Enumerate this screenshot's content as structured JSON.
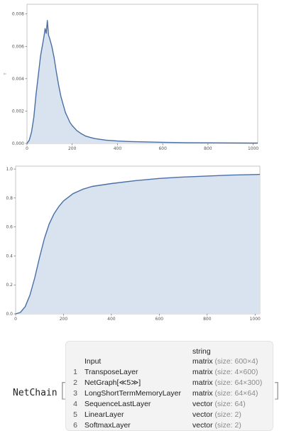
{
  "colors": {
    "curve": "#4a6fa5",
    "fill": "#d9e2ef",
    "axis": "#555555"
  },
  "charts": [
    {
      "type": "area",
      "ylabel": "Y",
      "x_ticks": [
        "0",
        "200",
        "400",
        "600",
        "800",
        "1000"
      ],
      "y_ticks": [
        "0.000",
        "0.002",
        "0.004",
        "0.006",
        "0.008"
      ],
      "xlim": [
        0,
        1020
      ],
      "ylim": [
        0,
        0.0086
      ]
    },
    {
      "type": "area",
      "x_ticks": [
        "0",
        "200",
        "400",
        "600",
        "800",
        "1000"
      ],
      "y_ticks": [
        "0.0",
        "0.2",
        "0.4",
        "0.6",
        "0.8",
        "1.0"
      ],
      "xlim": [
        0,
        1020
      ],
      "ylim": [
        0,
        1.02
      ]
    }
  ],
  "chart_data": [
    {
      "type": "area",
      "x": [
        0,
        10,
        20,
        30,
        40,
        50,
        60,
        70,
        75,
        80,
        85,
        90,
        95,
        100,
        110,
        120,
        130,
        140,
        150,
        160,
        170,
        180,
        190,
        200,
        220,
        240,
        260,
        280,
        300,
        350,
        400,
        450,
        500,
        600,
        700,
        800,
        900,
        1000,
        1020
      ],
      "y": [
        0.0,
        0.0002,
        0.0007,
        0.0016,
        0.003,
        0.0042,
        0.0054,
        0.0062,
        0.0066,
        0.0071,
        0.0068,
        0.0076,
        0.0067,
        0.0065,
        0.006,
        0.0053,
        0.0044,
        0.0036,
        0.0029,
        0.0024,
        0.0019,
        0.0016,
        0.0013,
        0.0011,
        0.0008,
        0.0006,
        0.00045,
        0.00037,
        0.0003,
        0.0002,
        0.00015,
        0.00012,
        0.0001,
        7e-05,
        5e-05,
        4e-05,
        3e-05,
        2e-05,
        2e-05
      ],
      "ylim": [
        0,
        0.0086
      ],
      "xlim": [
        0,
        1020
      ]
    },
    {
      "type": "area",
      "x": [
        0,
        20,
        40,
        60,
        80,
        100,
        120,
        140,
        160,
        180,
        200,
        240,
        280,
        320,
        400,
        500,
        600,
        700,
        800,
        900,
        1000,
        1020
      ],
      "y": [
        0.0,
        0.01,
        0.05,
        0.13,
        0.25,
        0.39,
        0.52,
        0.62,
        0.69,
        0.74,
        0.78,
        0.83,
        0.86,
        0.88,
        0.9,
        0.92,
        0.935,
        0.945,
        0.952,
        0.958,
        0.962,
        0.963
      ],
      "ylim": [
        0,
        1.02
      ],
      "xlim": [
        0,
        1020
      ]
    }
  ],
  "netchain": {
    "label": "NetChain",
    "header": "string",
    "rows": [
      {
        "index": "",
        "name": "Input",
        "type": "matrix",
        "size": "(size: 600×4)"
      },
      {
        "index": "1",
        "name": "TransposeLayer",
        "type": "matrix",
        "size": "(size: 4×600)"
      },
      {
        "index": "2",
        "name": "NetGraph[≪5≫]",
        "type": "matrix",
        "size": "(size: 64×300)"
      },
      {
        "index": "3",
        "name": "LongShortTermMemoryLayer",
        "type": "matrix",
        "size": "(size: 64×64)"
      },
      {
        "index": "4",
        "name": "SequenceLastLayer",
        "type": "vector",
        "size": "(size: 64)"
      },
      {
        "index": "5",
        "name": "LinearLayer",
        "type": "vector",
        "size": "(size: 2)"
      },
      {
        "index": "6",
        "name": "SoftmaxLayer",
        "type": "vector",
        "size": "(size: 2)"
      }
    ]
  }
}
